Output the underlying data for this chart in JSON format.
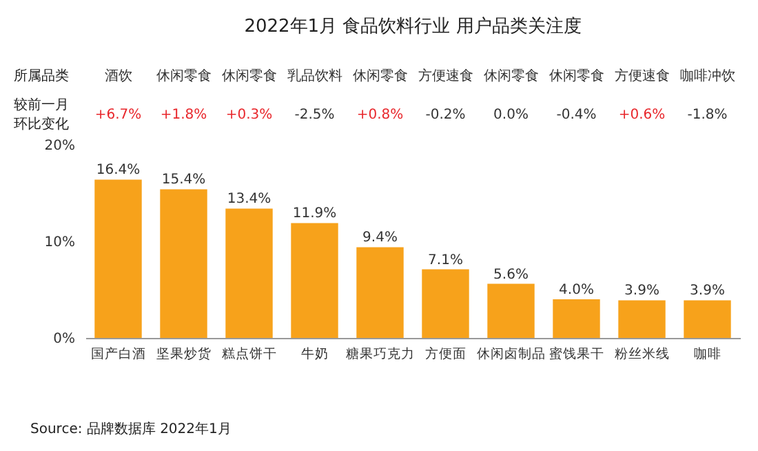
{
  "chart_data": {
    "type": "bar",
    "title": "2022年1月 食品饮料行业 用户品类关注度",
    "categories": [
      "国产白酒",
      "坚果炒货",
      "糕点饼干",
      "牛奶",
      "糖果巧克力",
      "方便面",
      "休闲卤制品",
      "蜜饯果干",
      "粉丝米线",
      "咖啡"
    ],
    "values": [
      16.4,
      15.4,
      13.4,
      11.9,
      9.4,
      7.1,
      5.6,
      4.0,
      3.9,
      3.9
    ],
    "value_labels": [
      "16.4%",
      "15.4%",
      "13.4%",
      "11.9%",
      "9.4%",
      "7.1%",
      "5.6%",
      "4.0%",
      "3.9%",
      "3.9%"
    ],
    "color": "#f7a21b",
    "ylim": [
      0,
      20
    ],
    "yticks": [
      {
        "value": 0,
        "label": "0%"
      },
      {
        "value": 10,
        "label": "10%"
      },
      {
        "value": 20,
        "label": "20%"
      }
    ],
    "grid": false,
    "annotations": [
      "所属品类",
      "较前一月",
      "环比变化",
      "酒饮",
      "休闲零食",
      "休闲零食",
      "乳品饮料",
      "休闲零食",
      "方便速食",
      "休闲零食",
      "休闲零食",
      "方便速食",
      "咖啡冲饮",
      "+6.7%",
      "+1.8%",
      "+0.3%",
      "-2.5%",
      "+0.8%",
      "-0.2%",
      "0.0%",
      "-0.4%",
      "+0.6%",
      "-1.8%",
      "Source:  品牌数据库 2022年1月"
    ]
  }
}
